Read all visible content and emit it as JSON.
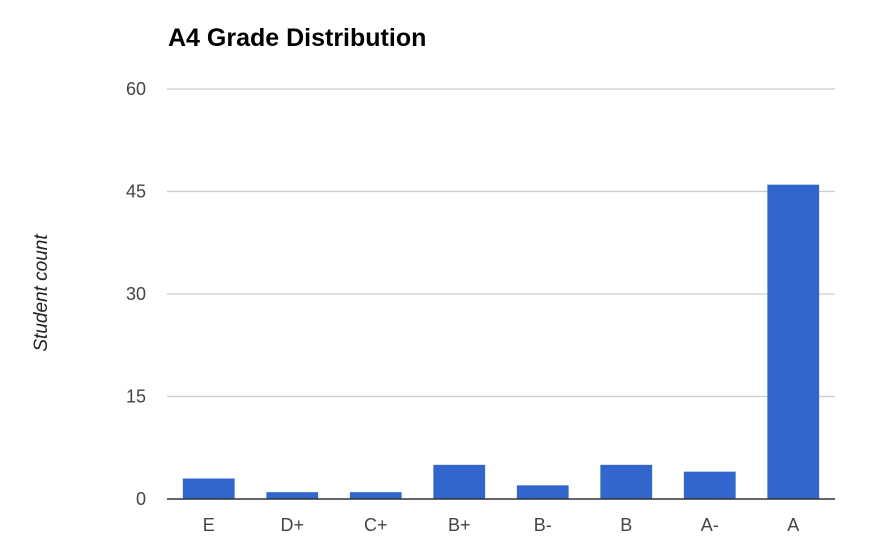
{
  "chart_data": {
    "type": "bar",
    "title": "A4 Grade Distribution",
    "xlabel": "",
    "ylabel": "Student count",
    "categories": [
      "E",
      "D+",
      "C+",
      "B+",
      "B-",
      "B",
      "A-",
      "A"
    ],
    "values": [
      3,
      1,
      1,
      5,
      2,
      5,
      4,
      46
    ],
    "ylim": [
      0,
      60
    ],
    "yticks": [
      0,
      15,
      30,
      45,
      60
    ],
    "grid": true,
    "legend": "none",
    "bar_color": "#3366cc",
    "grid_color": "#cccccc",
    "axis_color": "#333333"
  }
}
